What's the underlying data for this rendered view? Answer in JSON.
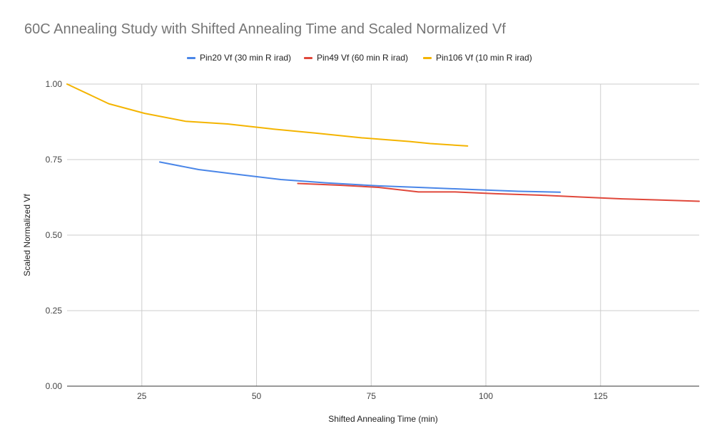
{
  "chart_data": {
    "type": "line",
    "title": "60C Annealing Study with Shifted Annealing Time and Scaled Normalized Vf",
    "xlabel": "Shifted Annealing Time (min)",
    "ylabel": "Scaled Normalized Vf",
    "xlim": [
      8.7,
      146.5
    ],
    "ylim": [
      0,
      1
    ],
    "x_ticks": [
      25,
      50,
      75,
      100,
      125
    ],
    "x_tick_labels": [
      "25",
      "50",
      "75",
      "100",
      "125"
    ],
    "y_ticks": [
      0,
      0.25,
      0.5,
      0.75,
      1.0
    ],
    "y_tick_labels": [
      "0.00",
      "0.25",
      "0.50",
      "0.75",
      "1.00"
    ],
    "grid": true,
    "legend_position": "top-center",
    "series": [
      {
        "name": "Pin20 Vf (30 min R irad)",
        "color": "#4a86e8",
        "points": [
          [
            28.9,
            0.742
          ],
          [
            37.4,
            0.717
          ],
          [
            46.5,
            0.7
          ],
          [
            55.3,
            0.684
          ],
          [
            65.1,
            0.673
          ],
          [
            76.6,
            0.663
          ],
          [
            85.3,
            0.658
          ],
          [
            97.0,
            0.651
          ],
          [
            107.1,
            0.645
          ],
          [
            116.2,
            0.642
          ]
        ]
      },
      {
        "name": "Pin49 Vf (60 min R irad)",
        "color": "#e0483b",
        "points": [
          [
            59.0,
            0.671
          ],
          [
            68.2,
            0.665
          ],
          [
            76.6,
            0.658
          ],
          [
            85.3,
            0.643
          ],
          [
            93.3,
            0.643
          ],
          [
            102.1,
            0.637
          ],
          [
            112.1,
            0.632
          ],
          [
            121.0,
            0.626
          ],
          [
            129.7,
            0.62
          ],
          [
            138.1,
            0.616
          ],
          [
            146.5,
            0.612
          ]
        ]
      },
      {
        "name": "Pin106 Vf (10 min R irad)",
        "color": "#f4b400",
        "points": [
          [
            8.7,
            1.0
          ],
          [
            17.8,
            0.935
          ],
          [
            25.6,
            0.903
          ],
          [
            34.5,
            0.877
          ],
          [
            43.7,
            0.868
          ],
          [
            53.1,
            0.852
          ],
          [
            62.8,
            0.838
          ],
          [
            73.0,
            0.822
          ],
          [
            83.4,
            0.81
          ],
          [
            87.9,
            0.803
          ],
          [
            96.0,
            0.795
          ]
        ]
      }
    ]
  }
}
